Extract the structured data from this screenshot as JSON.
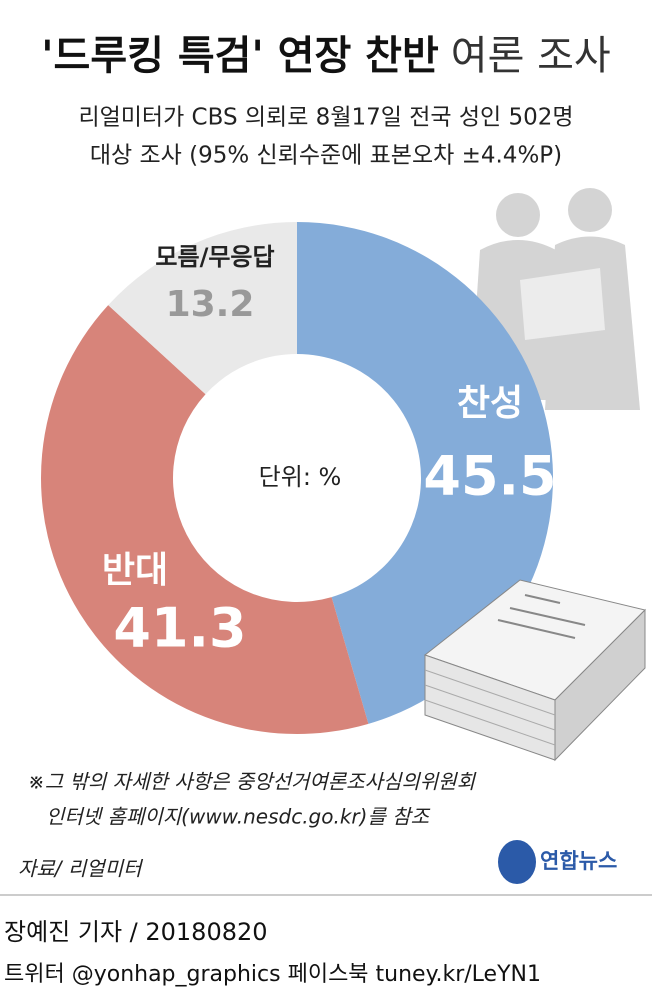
{
  "chart_data": {
    "type": "pie",
    "title": "'드루킹 특검' 연장 찬반",
    "title_suffix": "여론 조사",
    "subtitle": [
      "리얼미터가 CBS 의뢰로 8월17일 전국 성인 502명",
      "대상 조사 (95% 신뢰수준에 표본오차 ±4.4%P)"
    ],
    "center_label": "단위: %",
    "categories": [
      "찬성",
      "반대",
      "모름/무응답"
    ],
    "values": [
      45.5,
      41.3,
      13.2
    ],
    "colors": [
      "#84acd9",
      "#d7847a",
      "#e9e9e9"
    ],
    "note": [
      "※그 밖의 자세한 사항은 중앙선거여론조사심의위원회",
      "인터넷 홈페이지(www.nesdc.go.kr)를 참조"
    ],
    "source": "자료/ 리얼미터",
    "logo": "연합뉴스",
    "byline": "장예진 기자 / 20180820",
    "social": "트위터 @yonhap_graphics  페이스북 tuney.kr/LeYN1"
  }
}
